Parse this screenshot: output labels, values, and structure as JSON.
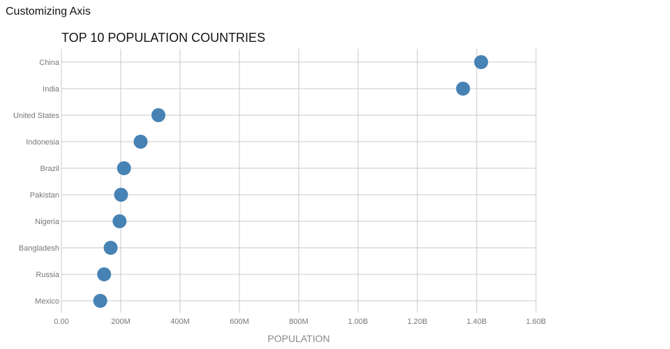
{
  "app": {
    "title": "Customizing Axis"
  },
  "chart_data": {
    "type": "scatter",
    "title": "TOP 10 POPULATION COUNTRIES",
    "xlabel": "POPULATION",
    "ylabel": "",
    "xlim": [
      0,
      1600000000
    ],
    "x_tick_values": [
      0,
      200000000,
      400000000,
      600000000,
      800000000,
      1000000000,
      1200000000,
      1400000000,
      1600000000
    ],
    "x_tick_labels": [
      "0.00",
      "200M",
      "400M",
      "600M",
      "800M",
      "1.00B",
      "1.20B",
      "1.40B",
      "1.60B"
    ],
    "categories": [
      "China",
      "India",
      "United States",
      "Indonesia",
      "Brazil",
      "Pakistan",
      "Nigeria",
      "Bangladesh",
      "Russia",
      "Mexico"
    ],
    "values": [
      1415000000,
      1354000000,
      327000000,
      267000000,
      211000000,
      201000000,
      196000000,
      166000000,
      144000000,
      131000000
    ],
    "grid": true,
    "color": "#4682b4"
  }
}
